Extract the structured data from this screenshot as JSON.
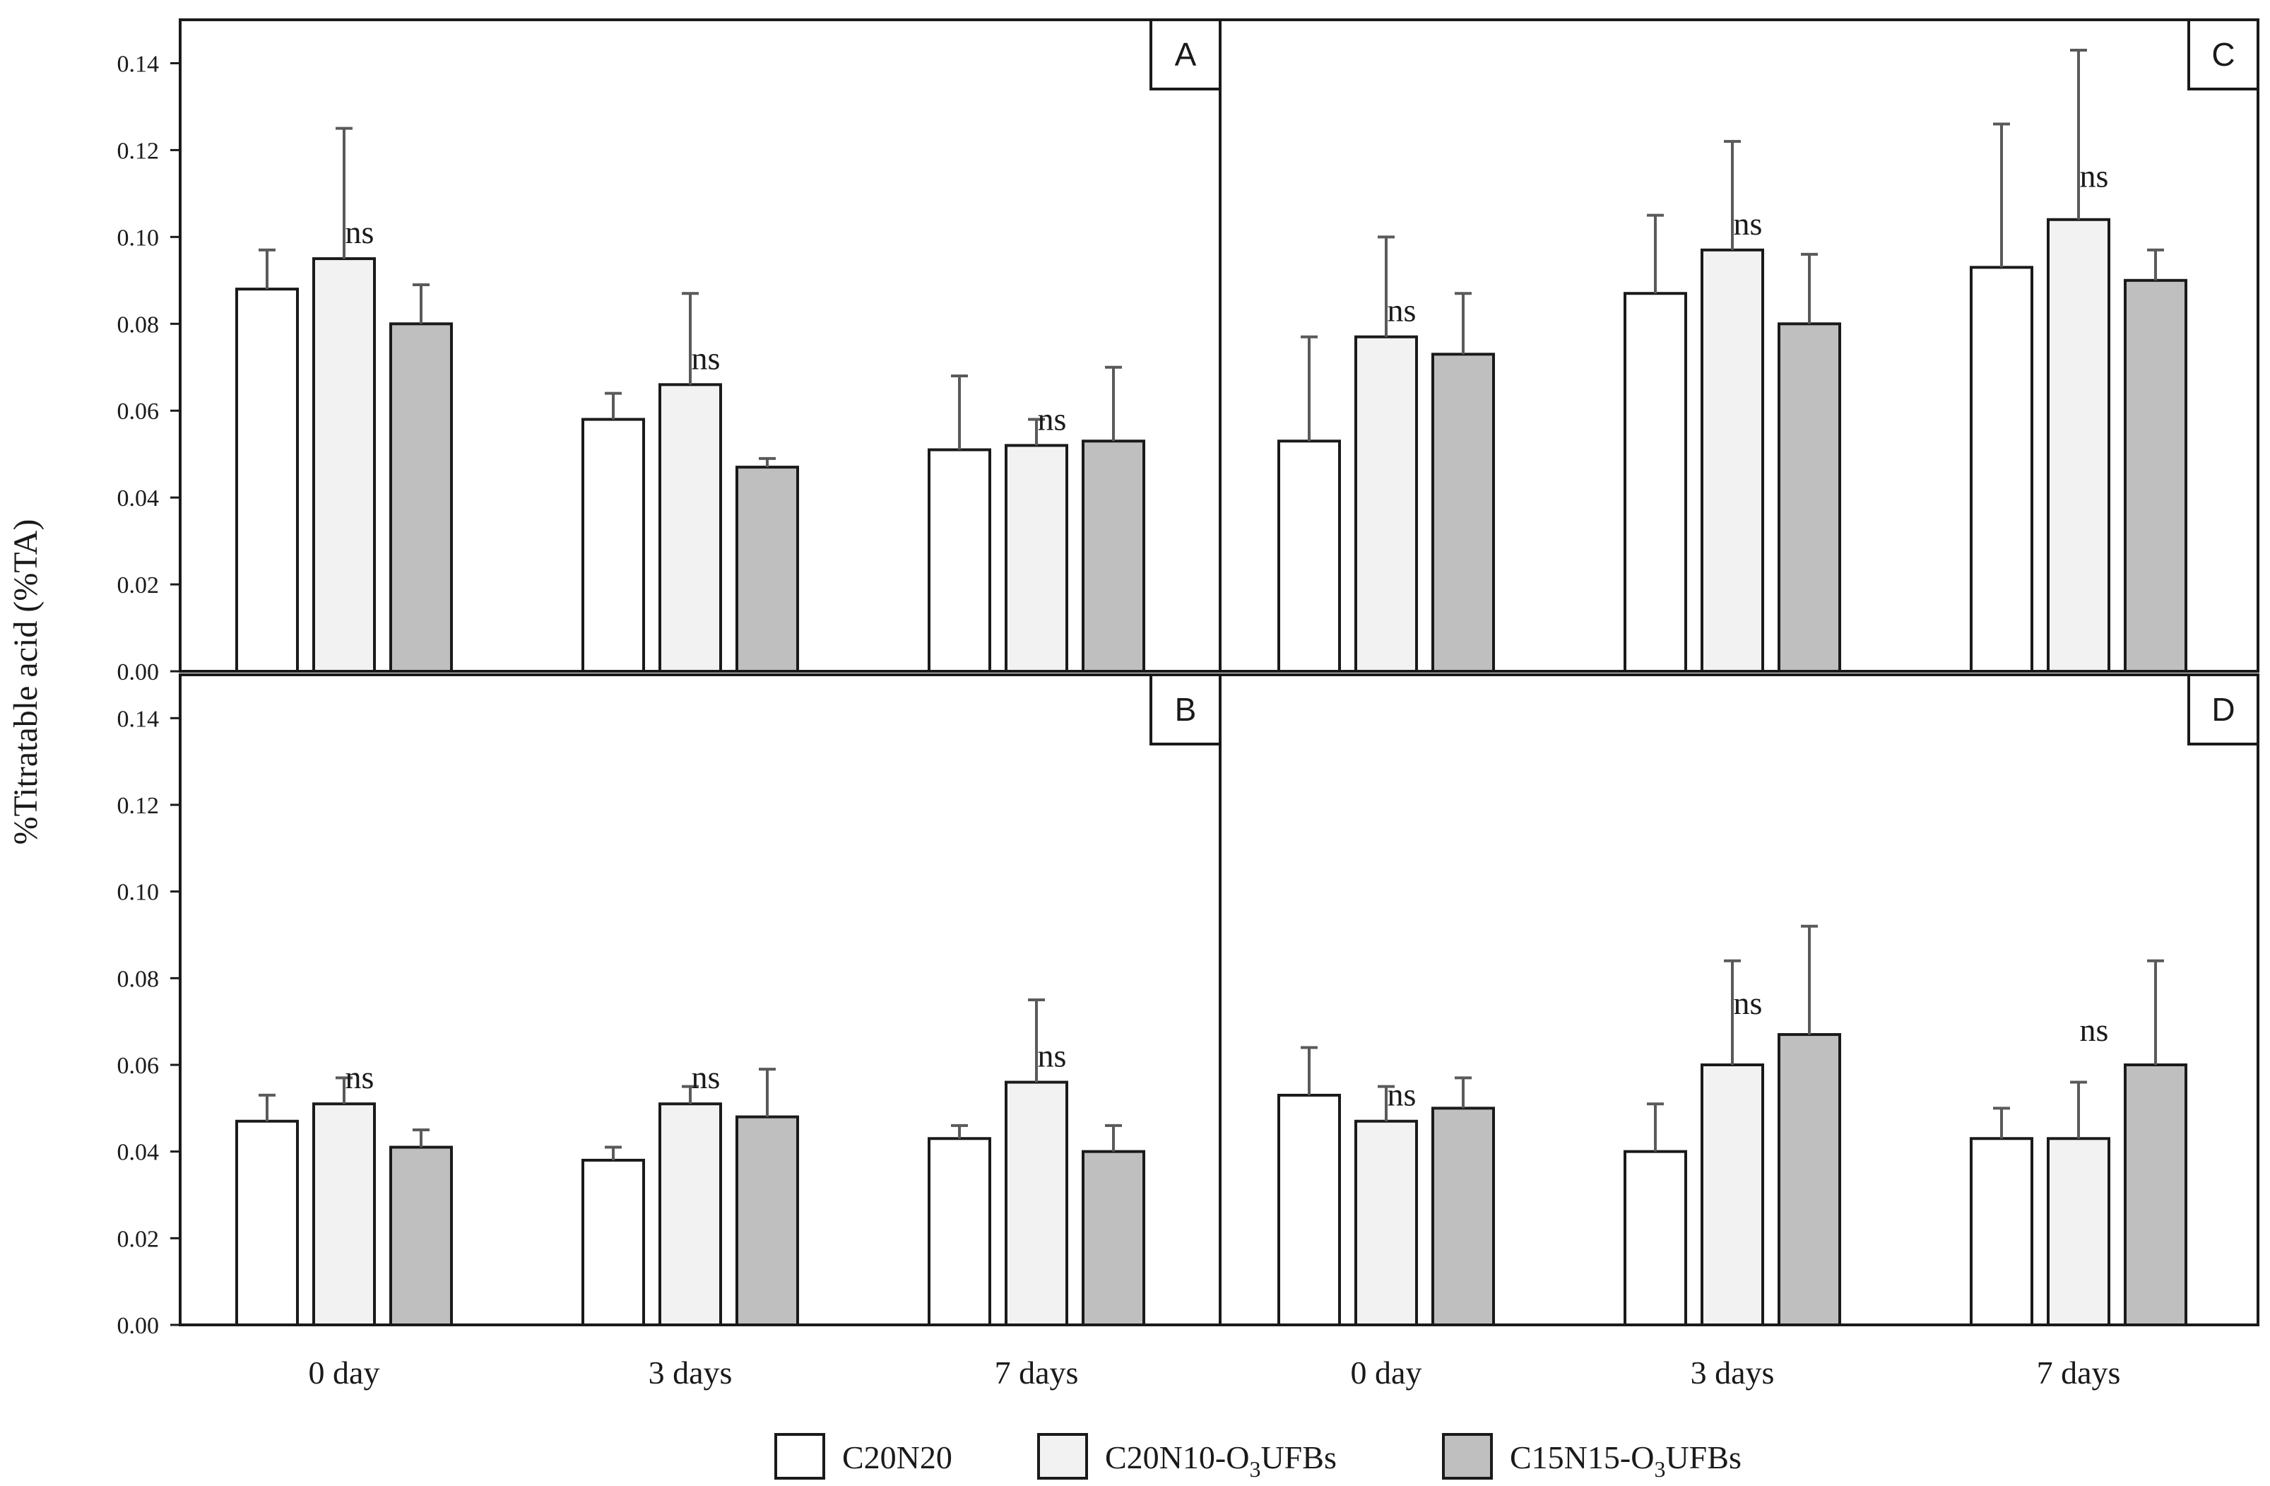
{
  "colors": {
    "C20N20": "#ffffff",
    "C20N10-O3UFBs": "#f2f2f2",
    "C15N15-O3UFBs": "#bfbfbf",
    "stroke": "#1a1a1a",
    "error_bar": "#5a5a5a"
  },
  "legend": {
    "placement": "bottom-center",
    "items": [
      {
        "key": "C20N20",
        "main": "C20N20",
        "sub": "",
        "suffix": ""
      },
      {
        "key": "C20N10-O3UFBs",
        "main": "C20N10-O",
        "sub": "3",
        "suffix": "UFBs"
      },
      {
        "key": "C15N15-O3UFBs",
        "main": "C15N15-O",
        "sub": "3",
        "suffix": "UFBs"
      }
    ]
  },
  "chart_data": [
    {
      "panel": "A",
      "type": "bar",
      "categories": [
        "0 day",
        "3 days",
        "7 days"
      ],
      "ylabel": "%Titratable acid (%TA)",
      "ylim": [
        0,
        0.15
      ],
      "yticks": [
        "0.00",
        "0.02",
        "0.04",
        "0.06",
        "0.08",
        "0.10",
        "0.12",
        "0.14"
      ],
      "grid": false,
      "series": [
        {
          "name": "C20N20",
          "values": [
            0.088,
            0.058,
            0.051
          ],
          "errors": [
            0.009,
            0.006,
            0.017
          ]
        },
        {
          "name": "C20N10-O3UFBs",
          "values": [
            0.095,
            0.066,
            0.052
          ],
          "errors": [
            0.03,
            0.021,
            0.006
          ]
        },
        {
          "name": "C15N15-O3UFBs",
          "values": [
            0.08,
            0.047,
            0.053
          ],
          "errors": [
            0.009,
            0.002,
            0.017
          ]
        }
      ],
      "annotations": [
        {
          "text": "ns",
          "category": 0
        },
        {
          "text": "ns",
          "category": 1
        },
        {
          "text": "ns",
          "category": 2
        }
      ]
    },
    {
      "panel": "C",
      "type": "bar",
      "categories": [
        "0 day",
        "3 days",
        "7 days"
      ],
      "ylim": [
        0,
        0.15
      ],
      "grid": false,
      "series": [
        {
          "name": "C20N20",
          "values": [
            0.053,
            0.087,
            0.093
          ],
          "errors": [
            0.024,
            0.018,
            0.033
          ]
        },
        {
          "name": "C20N10-O3UFBs",
          "values": [
            0.077,
            0.097,
            0.104
          ],
          "errors": [
            0.023,
            0.025,
            0.039
          ]
        },
        {
          "name": "C15N15-O3UFBs",
          "values": [
            0.073,
            0.08,
            0.09
          ],
          "errors": [
            0.014,
            0.016,
            0.007
          ]
        }
      ],
      "annotations": [
        {
          "text": "ns",
          "category": 0
        },
        {
          "text": "ns",
          "category": 1
        },
        {
          "text": "ns",
          "category": 2
        }
      ]
    },
    {
      "panel": "B",
      "type": "bar",
      "categories": [
        "0 day",
        "3 days",
        "7 days"
      ],
      "ylim": [
        0,
        0.15
      ],
      "yticks": [
        "0.00",
        "0.02",
        "0.04",
        "0.06",
        "0.08",
        "0.10",
        "0.12",
        "0.14"
      ],
      "grid": false,
      "series": [
        {
          "name": "C20N20",
          "values": [
            0.047,
            0.038,
            0.043
          ],
          "errors": [
            0.006,
            0.003,
            0.003
          ]
        },
        {
          "name": "C20N10-O3UFBs",
          "values": [
            0.051,
            0.051,
            0.056
          ],
          "errors": [
            0.006,
            0.004,
            0.019
          ]
        },
        {
          "name": "C15N15-O3UFBs",
          "values": [
            0.041,
            0.048,
            0.04
          ],
          "errors": [
            0.004,
            0.011,
            0.006
          ]
        }
      ],
      "annotations": [
        {
          "text": "ns",
          "category": 0
        },
        {
          "text": "ns",
          "category": 1
        },
        {
          "text": "ns",
          "category": 2
        }
      ]
    },
    {
      "panel": "D",
      "type": "bar",
      "categories": [
        "0 day",
        "3 days",
        "7 days"
      ],
      "ylim": [
        0,
        0.15
      ],
      "grid": false,
      "series": [
        {
          "name": "C20N20",
          "values": [
            0.053,
            0.04,
            0.043
          ],
          "errors": [
            0.011,
            0.011,
            0.007
          ]
        },
        {
          "name": "C20N10-O3UFBs",
          "values": [
            0.047,
            0.06,
            0.043
          ],
          "errors": [
            0.008,
            0.024,
            0.013
          ]
        },
        {
          "name": "C15N15-O3UFBs",
          "values": [
            0.05,
            0.067,
            0.06
          ],
          "errors": [
            0.007,
            0.025,
            0.024
          ]
        }
      ],
      "annotations": [
        {
          "text": "ns",
          "category": 0
        },
        {
          "text": "ns",
          "category": 1
        },
        {
          "text": "ns",
          "category": 2
        }
      ]
    }
  ]
}
